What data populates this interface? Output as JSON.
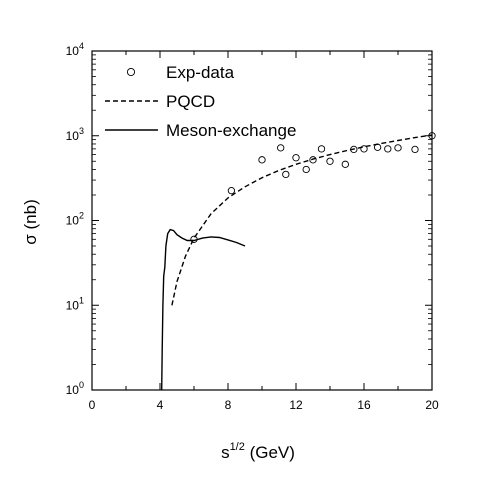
{
  "chart_data": {
    "type": "line",
    "title": "",
    "xlabel": {
      "base": "s",
      "sup": "1/2",
      "rest": " (GeV)"
    },
    "ylabel": "σ (nb)",
    "xlim": [
      0,
      20
    ],
    "ylim": [
      1,
      10000
    ],
    "yscale": "log",
    "grid": false,
    "legend_position": "top-left",
    "x_ticks": [
      0,
      4,
      8,
      12,
      16,
      20
    ],
    "x_tick_labels": [
      "0",
      "4",
      "8",
      "12",
      "16",
      "20"
    ],
    "y_ticks": [
      1,
      10,
      100,
      1000,
      10000
    ],
    "y_tick_labels": [
      {
        "base": "10",
        "exp": "0"
      },
      {
        "base": "10",
        "exp": "1"
      },
      {
        "base": "10",
        "exp": "2"
      },
      {
        "base": "10",
        "exp": "3"
      },
      {
        "base": "10",
        "exp": "4"
      }
    ],
    "series": [
      {
        "name": "Exp-data",
        "style": "open-circle",
        "points": [
          [
            6.0,
            60
          ],
          [
            8.2,
            225
          ],
          [
            10.0,
            520
          ],
          [
            11.1,
            720
          ],
          [
            11.4,
            350
          ],
          [
            12.0,
            550
          ],
          [
            12.6,
            400
          ],
          [
            13.0,
            520
          ],
          [
            13.5,
            700
          ],
          [
            14.0,
            500
          ],
          [
            14.9,
            460
          ],
          [
            15.4,
            690
          ],
          [
            16.0,
            700
          ],
          [
            16.8,
            730
          ],
          [
            17.4,
            700
          ],
          [
            18.0,
            720
          ],
          [
            19.0,
            690
          ],
          [
            20.0,
            1000
          ]
        ]
      },
      {
        "name": "PQCD",
        "style": "dashed",
        "points": [
          [
            4.7,
            10
          ],
          [
            5.0,
            19
          ],
          [
            5.5,
            38
          ],
          [
            6.0,
            62
          ],
          [
            7.0,
            120
          ],
          [
            8.0,
            185
          ],
          [
            9.0,
            250
          ],
          [
            10.0,
            320
          ],
          [
            11.0,
            390
          ],
          [
            12.0,
            460
          ],
          [
            13.0,
            530
          ],
          [
            14.0,
            600
          ],
          [
            15.0,
            670
          ],
          [
            16.0,
            740
          ],
          [
            17.0,
            810
          ],
          [
            18.0,
            880
          ],
          [
            19.0,
            950
          ],
          [
            20.0,
            1020
          ]
        ]
      },
      {
        "name": "Meson-exchange",
        "style": "solid",
        "points": [
          [
            4.1,
            1
          ],
          [
            4.13,
            3
          ],
          [
            4.17,
            10
          ],
          [
            4.22,
            22
          ],
          [
            4.28,
            28
          ],
          [
            4.35,
            50
          ],
          [
            4.45,
            70
          ],
          [
            4.6,
            78
          ],
          [
            4.8,
            76
          ],
          [
            5.0,
            68
          ],
          [
            5.3,
            62
          ],
          [
            5.6,
            58
          ],
          [
            6.0,
            58
          ],
          [
            6.5,
            62
          ],
          [
            7.0,
            64
          ],
          [
            7.5,
            63
          ],
          [
            8.0,
            59
          ],
          [
            8.5,
            55
          ],
          [
            9.0,
            50
          ]
        ]
      }
    ]
  }
}
